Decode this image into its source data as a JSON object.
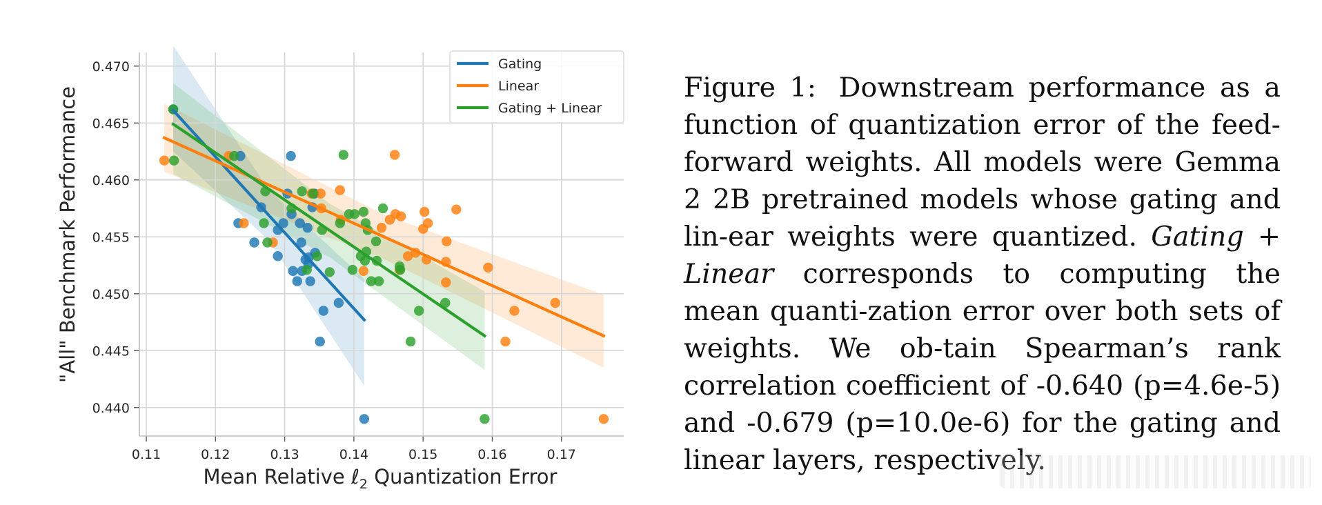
{
  "chart_data": {
    "type": "scatter",
    "title": "",
    "xlabel": "Mean Relative ℓ₂ Quantization Error",
    "xlabel_parts": {
      "pre": "Mean Relative ",
      "ell": "ℓ",
      "sub": "2",
      "post": " Quantization Error"
    },
    "ylabel": "\"All\" Benchmark Performance",
    "xlim": [
      0.109,
      0.179
    ],
    "ylim": [
      0.4375,
      0.4712
    ],
    "xticks": [
      0.11,
      0.12,
      0.13,
      0.14,
      0.15,
      0.16,
      0.17
    ],
    "xtick_labels": [
      "0.11",
      "0.12",
      "0.13",
      "0.14",
      "0.15",
      "0.16",
      "0.17"
    ],
    "yticks": [
      0.44,
      0.445,
      0.45,
      0.455,
      0.46,
      0.465,
      0.47
    ],
    "ytick_labels": [
      "0.440",
      "0.445",
      "0.450",
      "0.455",
      "0.460",
      "0.465",
      "0.470"
    ],
    "grid": true,
    "legend_position": "top-right",
    "series": [
      {
        "name": "Gating",
        "color": "#1f77b4",
        "points": [
          [
            0.1139,
            0.4662
          ],
          [
            0.1236,
            0.4621
          ],
          [
            0.1309,
            0.4621
          ],
          [
            0.1266,
            0.4576
          ],
          [
            0.1304,
            0.4588
          ],
          [
            0.1233,
            0.4562
          ],
          [
            0.1256,
            0.4545
          ],
          [
            0.129,
            0.4556
          ],
          [
            0.1298,
            0.4562
          ],
          [
            0.131,
            0.457
          ],
          [
            0.1322,
            0.4562
          ],
          [
            0.1333,
            0.4558
          ],
          [
            0.134,
            0.4576
          ],
          [
            0.1343,
            0.4588
          ],
          [
            0.129,
            0.4533
          ],
          [
            0.1324,
            0.4545
          ],
          [
            0.133,
            0.453
          ],
          [
            0.1344,
            0.4536
          ],
          [
            0.1334,
            0.4526
          ],
          [
            0.1312,
            0.452
          ],
          [
            0.1318,
            0.4511
          ],
          [
            0.1325,
            0.452
          ],
          [
            0.1337,
            0.4511
          ],
          [
            0.1335,
            0.4532
          ],
          [
            0.1356,
            0.4485
          ],
          [
            0.1378,
            0.4492
          ],
          [
            0.1351,
            0.4458
          ],
          [
            0.1415,
            0.439
          ]
        ],
        "fit": {
          "x0": 0.1139,
          "y0": 0.4661,
          "x1": 0.1415,
          "y1": 0.4477
        },
        "ci_lower_at_x1": 0.4419,
        "ci_upper_at_x1": 0.4513,
        "ci_lower_at_x0": 0.4625,
        "ci_upper_at_x0": 0.4718
      },
      {
        "name": "Linear",
        "color": "#ff7f0e",
        "points": [
          [
            0.1126,
            0.4617
          ],
          [
            0.1219,
            0.4621
          ],
          [
            0.1241,
            0.4562
          ],
          [
            0.1283,
            0.4545
          ],
          [
            0.1339,
            0.4588
          ],
          [
            0.1352,
            0.4588
          ],
          [
            0.1353,
            0.4575
          ],
          [
            0.138,
            0.4591
          ],
          [
            0.1381,
            0.4565
          ],
          [
            0.1414,
            0.452
          ],
          [
            0.144,
            0.4558
          ],
          [
            0.1452,
            0.4565
          ],
          [
            0.1459,
            0.4622
          ],
          [
            0.146,
            0.457
          ],
          [
            0.1468,
            0.4568
          ],
          [
            0.1466,
            0.4521
          ],
          [
            0.1478,
            0.4533
          ],
          [
            0.1489,
            0.4536
          ],
          [
            0.15,
            0.4557
          ],
          [
            0.1502,
            0.4572
          ],
          [
            0.1507,
            0.4562
          ],
          [
            0.1505,
            0.453
          ],
          [
            0.1534,
            0.4546
          ],
          [
            0.1533,
            0.4528
          ],
          [
            0.1533,
            0.451
          ],
          [
            0.1548,
            0.4574
          ],
          [
            0.1594,
            0.4523
          ],
          [
            0.1619,
            0.4458
          ],
          [
            0.1632,
            0.4485
          ],
          [
            0.1691,
            0.4492
          ],
          [
            0.1761,
            0.439
          ]
        ],
        "fit": {
          "x0": 0.1126,
          "y0": 0.4637,
          "x1": 0.1761,
          "y1": 0.4463
        },
        "ci_lower_at_x0": 0.4607,
        "ci_upper_at_x0": 0.4667,
        "ci_lower_at_x1": 0.4435,
        "ci_upper_at_x1": 0.4499
      },
      {
        "name": "Gating + Linear",
        "color": "#2ca02c",
        "points": [
          [
            0.114,
            0.4617
          ],
          [
            0.1139,
            0.4662
          ],
          [
            0.1227,
            0.4621
          ],
          [
            0.1272,
            0.459
          ],
          [
            0.127,
            0.4562
          ],
          [
            0.1275,
            0.4545
          ],
          [
            0.131,
            0.4575
          ],
          [
            0.1325,
            0.459
          ],
          [
            0.1341,
            0.4588
          ],
          [
            0.1354,
            0.4556
          ],
          [
            0.1347,
            0.4533
          ],
          [
            0.138,
            0.4562
          ],
          [
            0.1393,
            0.457
          ],
          [
            0.1385,
            0.4622
          ],
          [
            0.1401,
            0.457
          ],
          [
            0.1414,
            0.4572
          ],
          [
            0.1417,
            0.4562
          ],
          [
            0.142,
            0.4556
          ],
          [
            0.141,
            0.4533
          ],
          [
            0.1416,
            0.4529
          ],
          [
            0.1418,
            0.4537
          ],
          [
            0.1432,
            0.4546
          ],
          [
            0.1442,
            0.4575
          ],
          [
            0.1433,
            0.4529
          ],
          [
            0.1365,
            0.4519
          ],
          [
            0.1398,
            0.4521
          ],
          [
            0.1425,
            0.4511
          ],
          [
            0.1436,
            0.4511
          ],
          [
            0.1466,
            0.4524
          ],
          [
            0.1467,
            0.4521
          ],
          [
            0.1482,
            0.4458
          ],
          [
            0.1494,
            0.4485
          ],
          [
            0.1532,
            0.4492
          ],
          [
            0.1332,
            0.4521
          ],
          [
            0.1589,
            0.439
          ]
        ],
        "fit": {
          "x0": 0.1139,
          "y0": 0.4649,
          "x1": 0.1589,
          "y1": 0.4463
        },
        "ci_lower_at_x0": 0.4605,
        "ci_upper_at_x0": 0.4685,
        "ci_lower_at_x1": 0.4433,
        "ci_upper_at_x1": 0.4502
      }
    ]
  },
  "caption": {
    "label": "Figure 1:",
    "text_before_italic": "Downstream performance as a function of quantization error of the feed-forward weights. All models were Gemma 2 2B pretrained models whose gating and lin-ear weights were quantized.",
    "italic": "Gating + Linear",
    "text_after_italic": "corresponds to computing the mean quanti-zation error over both sets of weights. We ob-tain Spearman’s rank correlation coefficient of -0.640 (p=4.6e-5) and -0.679 (p=10.0e-6) for the gating and linear layers, respectively."
  }
}
